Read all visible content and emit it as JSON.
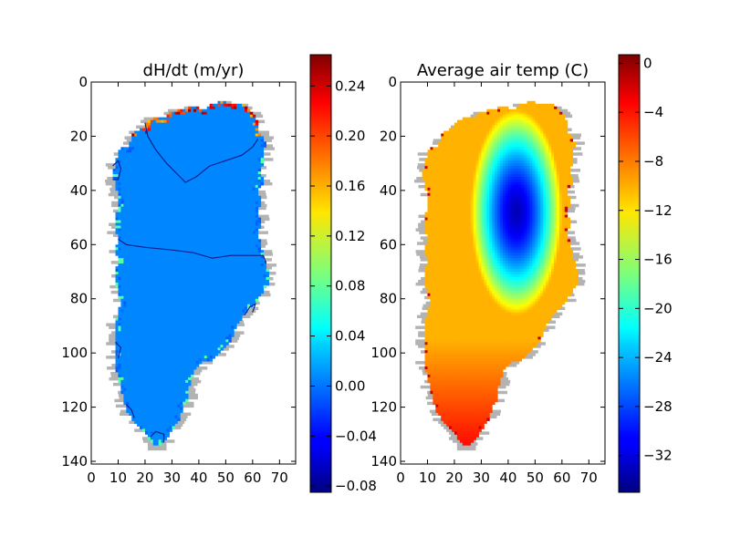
{
  "chart_data": [
    {
      "type": "heatmap",
      "title": "dH/dt  (m/yr)",
      "x_ticks": [
        0,
        10,
        20,
        30,
        40,
        50,
        60,
        70
      ],
      "y_ticks": [
        0,
        20,
        40,
        60,
        80,
        100,
        120,
        140
      ],
      "x_range": [
        0,
        76
      ],
      "y_range": [
        0,
        141
      ],
      "y_inverted": true,
      "colormap": "jet",
      "colorbar": {
        "range": [
          -0.085,
          0.265
        ],
        "tick_values": [
          0.24,
          0.2,
          0.16,
          0.12,
          0.08,
          0.04,
          0.0,
          -0.04,
          -0.08
        ],
        "tick_labels": [
          "0.24",
          "0.20",
          "0.16",
          "0.12",
          "0.08",
          "0.04",
          "0.00",
          "−0.04",
          "−0.08"
        ]
      },
      "dominant_value": 0.005,
      "contour_color": "#0d1f8c"
    },
    {
      "type": "heatmap",
      "title": "Average air temp (C)",
      "x_ticks": [
        0,
        10,
        20,
        30,
        40,
        50,
        60,
        70
      ],
      "y_ticks": [
        0,
        20,
        40,
        60,
        80,
        100,
        120,
        140
      ],
      "x_range": [
        0,
        76
      ],
      "y_range": [
        0,
        141
      ],
      "y_inverted": true,
      "colormap": "jet",
      "colorbar": {
        "range": [
          -35,
          0.7
        ],
        "tick_values": [
          0,
          -4,
          -8,
          -12,
          -16,
          -20,
          -24,
          -28,
          -32
        ],
        "tick_labels": [
          "0",
          "−4",
          "−8",
          "−12",
          "−16",
          "−20",
          "−24",
          "−28",
          "−32"
        ]
      },
      "center": [
        43,
        48
      ],
      "center_value": -33,
      "coast_value": -10
    }
  ],
  "colors": {
    "ice_free_land": "#b3b3b3",
    "axes_frame": "#000000"
  }
}
